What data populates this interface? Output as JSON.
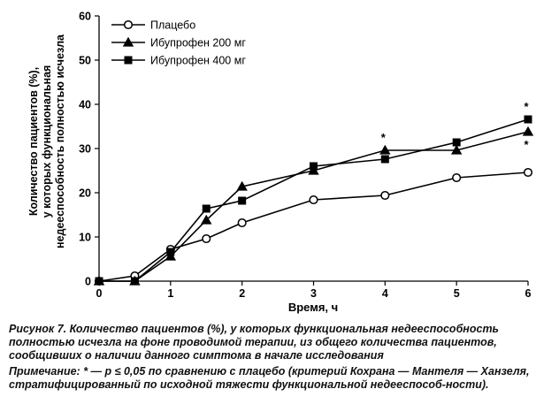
{
  "chart_data": {
    "type": "line",
    "title": "",
    "xlabel": "Время, ч",
    "ylabel_lines": [
      "Количество пациентов (%),",
      "у которых функциональная",
      "недееспособность полностью исчезла"
    ],
    "xlim": [
      0,
      6
    ],
    "ylim": [
      0,
      60
    ],
    "xticks": [
      "0",
      "1",
      "2",
      "3",
      "4",
      "5",
      "6"
    ],
    "yticks": [
      "0",
      "10",
      "20",
      "30",
      "40",
      "50",
      "60"
    ],
    "grid": false,
    "legend_position": "top-left",
    "series": [
      {
        "name": "Плацебо",
        "marker": "circle-open",
        "x": [
          0,
          0.5,
          1,
          1.5,
          2,
          3,
          4,
          5,
          6
        ],
        "y": [
          0,
          1.2,
          7.2,
          9.6,
          13.2,
          18.4,
          19.4,
          23.4,
          24.6
        ]
      },
      {
        "name": "Ибупрофен 200 мг",
        "marker": "triangle-filled",
        "x": [
          0,
          0.5,
          1,
          1.5,
          2,
          3,
          4,
          5,
          6
        ],
        "y": [
          0,
          0,
          5.6,
          13.8,
          21.4,
          25.0,
          29.6,
          29.6,
          33.8
        ]
      },
      {
        "name": "Ибупрофен 400 мг",
        "marker": "square-filled",
        "x": [
          0,
          0.5,
          1,
          1.5,
          2,
          3,
          4,
          5,
          6
        ],
        "y": [
          0,
          0,
          6.6,
          16.4,
          18.2,
          26.0,
          27.6,
          31.4,
          36.6
        ]
      }
    ],
    "annotations": [
      {
        "text": "*",
        "x": 4,
        "y": 29.6
      },
      {
        "text": "*",
        "x": 6,
        "y": 36.6
      },
      {
        "text": "*",
        "x": 6,
        "y": 33.8
      }
    ]
  },
  "caption": {
    "label": "Рисунок 7.",
    "text": "Количество пациентов (%), у которых функциональная недееспособность полностью исчезла на фоне проводимой терапии, из общего количества пациентов, сообщивших о наличии данного симптома в начале исследования"
  },
  "note": {
    "label": "Примечание:",
    "text": "* — p ≤ 0,05 по сравнению с плацебо (критерий Кохрана — Мантеля — Ханзеля, стратифицированный по исходной тяжести функциональной недееспособ-ности)."
  }
}
